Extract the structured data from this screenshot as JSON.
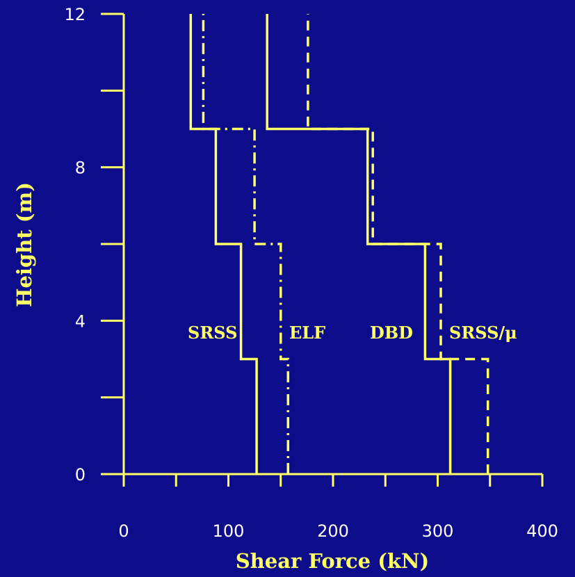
{
  "chart_data": {
    "type": "line",
    "title": "",
    "xlabel": "Shear Force (kN)",
    "ylabel": "Height (m)",
    "xlim": [
      0,
      400
    ],
    "ylim": [
      0,
      12
    ],
    "xticks": [
      0,
      100,
      200,
      300,
      400
    ],
    "yticks": [
      0,
      4,
      8,
      12
    ],
    "grid": false,
    "colors": {
      "background": "#0d0d8c",
      "lines": "#ffff66",
      "tick_labels": "#ffffff"
    },
    "series": [
      {
        "name": "SRSS",
        "style": "solid",
        "points": [
          [
            127,
            0
          ],
          [
            127,
            3
          ],
          [
            112,
            3
          ],
          [
            112,
            6
          ],
          [
            88,
            6
          ],
          [
            88,
            9
          ],
          [
            64,
            9
          ],
          [
            64,
            12
          ]
        ]
      },
      {
        "name": "ELF",
        "style": "dashdot",
        "points": [
          [
            157,
            0
          ],
          [
            157,
            3
          ],
          [
            150,
            3
          ],
          [
            150,
            6
          ],
          [
            125,
            6
          ],
          [
            125,
            9
          ],
          [
            76,
            9
          ],
          [
            76,
            12
          ]
        ]
      },
      {
        "name": "DBD",
        "style": "solid",
        "points": [
          [
            312,
            0
          ],
          [
            312,
            3
          ],
          [
            288,
            3
          ],
          [
            288,
            6
          ],
          [
            233,
            6
          ],
          [
            233,
            9
          ],
          [
            137,
            9
          ],
          [
            137,
            12
          ]
        ]
      },
      {
        "name": "SRSS/μ",
        "style": "dashed",
        "points": [
          [
            348,
            0
          ],
          [
            348,
            3
          ],
          [
            303,
            3
          ],
          [
            303,
            6
          ],
          [
            238,
            6
          ],
          [
            238,
            9
          ],
          [
            176,
            9
          ],
          [
            176,
            12
          ]
        ]
      }
    ]
  }
}
